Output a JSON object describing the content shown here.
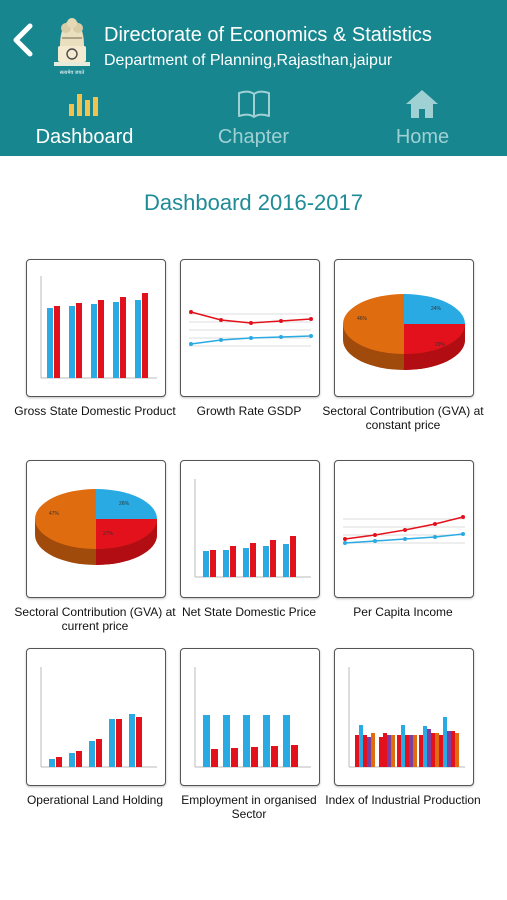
{
  "header": {
    "title": "Directorate of Economics & Statistics",
    "subtitle": "Department of Planning,Rajasthan,jaipur",
    "emblem_motto": "सत्यमेव जयते"
  },
  "tabs": [
    {
      "label": "Dashboard",
      "icon": "bar-chart-icon",
      "active": true
    },
    {
      "label": "Chapter",
      "icon": "book-icon",
      "active": false
    },
    {
      "label": "Home",
      "icon": "home-icon",
      "active": false
    }
  ],
  "page_title": "Dashboard 2016-2017",
  "tiles": [
    {
      "caption": "Gross State Domestic Product",
      "thumb": "bar-chart-thumbnail"
    },
    {
      "caption": "Growth Rate GSDP",
      "thumb": "line-chart-thumbnail"
    },
    {
      "caption": "Sectoral Contribution (GVA) at constant price",
      "thumb": "pie-chart-thumbnail"
    },
    {
      "caption": "Sectoral Contribution (GVA) at current price",
      "thumb": "pie-chart-thumbnail"
    },
    {
      "caption": "Net State Domestic Price",
      "thumb": "bar-chart-thumbnail"
    },
    {
      "caption": "Per Capita Income",
      "thumb": "line-chart-thumbnail"
    },
    {
      "caption": "Operational Land Holding",
      "thumb": "bar-chart-thumbnail"
    },
    {
      "caption": "Employment in organised Sector",
      "thumb": "bar-chart-thumbnail"
    },
    {
      "caption": "Index of Industrial Production",
      "thumb": "bar-chart-thumbnail"
    }
  ],
  "colors": {
    "header_bg": "#17868f",
    "accent_text": "#1f8b96",
    "tab_inactive": "#9fd0d4",
    "tab_icon_active": "#f2c14e",
    "series_blue": "#2aaae2",
    "series_red": "#e3111b",
    "series_orange": "#e06c10",
    "series_purple": "#7b3fa0"
  }
}
